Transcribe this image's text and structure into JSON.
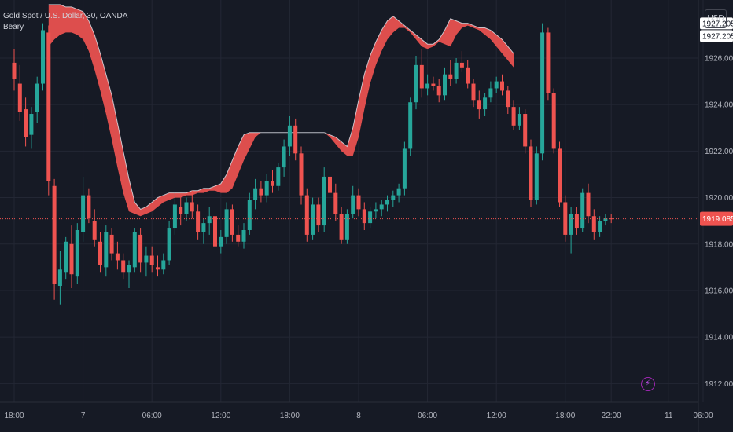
{
  "header": {
    "symbol_title": "Gold Spot / U.S. Dollar, 30, OANDA",
    "indicator": "Beary",
    "currency": "USD"
  },
  "icons": {
    "flash": "lightning-icon"
  },
  "colors": {
    "background": "#161a25",
    "up": "#26a69a",
    "down": "#ef5350",
    "band": "#ef5350",
    "band_line": "#e0e3eb",
    "price_line": "#ef5350"
  },
  "chart_data": {
    "type": "candlestick",
    "y_ticks": [
      "1912.000",
      "1914.000",
      "1916.000",
      "1918.000",
      "1920.000",
      "1922.000",
      "1924.000",
      "1926.000"
    ],
    "ylim": [
      1911.2,
      1928.5
    ],
    "x_ticks": [
      {
        "label": "18:00",
        "i": 0
      },
      {
        "label": "7",
        "i": 12
      },
      {
        "label": "06:00",
        "i": 24
      },
      {
        "label": "12:00",
        "i": 36
      },
      {
        "label": "18:00",
        "i": 48
      },
      {
        "label": "8",
        "i": 60
      },
      {
        "label": "06:00",
        "i": 72
      },
      {
        "label": "12:00",
        "i": 84
      },
      {
        "label": "18:00",
        "i": 96
      },
      {
        "label": "22:00",
        "i": 104
      },
      {
        "label": "11",
        "i": 114
      },
      {
        "label": "06:00",
        "i": 120
      }
    ],
    "last_price": "1919.085",
    "last_price_value": 1919.085,
    "band_labels": [
      "1927.205",
      "1927.205"
    ],
    "candles": [
      [
        1925.8,
        1926.4,
        1924.6,
        1925.1
      ],
      [
        1924.9,
        1925.7,
        1923.3,
        1923.7
      ],
      [
        1923.8,
        1924.3,
        1922.2,
        1922.6
      ],
      [
        1922.7,
        1923.9,
        1922.1,
        1923.6
      ],
      [
        1923.7,
        1925.2,
        1923.2,
        1924.9
      ],
      [
        1924.9,
        1927.5,
        1924.6,
        1927.2
      ],
      [
        1927.1,
        1927.4,
        1920.1,
        1920.7
      ],
      [
        1920.5,
        1920.8,
        1915.6,
        1916.3
      ],
      [
        1916.2,
        1917.7,
        1915.4,
        1916.9
      ],
      [
        1916.8,
        1918.3,
        1916.5,
        1918.1
      ],
      [
        1918.0,
        1918.8,
        1916.1,
        1916.7
      ],
      [
        1916.6,
        1918.9,
        1916.3,
        1918.6
      ],
      [
        1918.5,
        1920.9,
        1918.1,
        1920.1
      ],
      [
        1920.1,
        1920.4,
        1918.9,
        1919.1
      ],
      [
        1919.0,
        1919.5,
        1917.9,
        1918.2
      ],
      [
        1918.1,
        1918.5,
        1916.8,
        1917.1
      ],
      [
        1917.0,
        1918.8,
        1916.6,
        1918.5
      ],
      [
        1918.4,
        1918.7,
        1917.3,
        1917.6
      ],
      [
        1917.6,
        1918.1,
        1916.9,
        1917.3
      ],
      [
        1917.3,
        1917.6,
        1916.5,
        1916.8
      ],
      [
        1916.8,
        1917.3,
        1916.1,
        1917.1
      ],
      [
        1917.0,
        1918.7,
        1916.8,
        1918.5
      ],
      [
        1918.4,
        1918.7,
        1916.8,
        1917.2
      ],
      [
        1917.2,
        1917.9,
        1916.6,
        1917.5
      ],
      [
        1917.5,
        1917.9,
        1916.8,
        1917.1
      ],
      [
        1917.0,
        1917.5,
        1916.6,
        1916.9
      ],
      [
        1916.9,
        1917.6,
        1916.7,
        1917.3
      ],
      [
        1917.3,
        1919.0,
        1917.1,
        1918.7
      ],
      [
        1918.7,
        1920.2,
        1918.4,
        1919.7
      ],
      [
        1919.6,
        1920.0,
        1918.8,
        1919.3
      ],
      [
        1919.3,
        1920.0,
        1919.0,
        1919.8
      ],
      [
        1919.8,
        1920.3,
        1919.1,
        1919.4
      ],
      [
        1919.4,
        1919.7,
        1918.2,
        1918.5
      ],
      [
        1918.5,
        1919.1,
        1918.0,
        1918.9
      ],
      [
        1918.9,
        1919.6,
        1918.4,
        1919.2
      ],
      [
        1919.2,
        1919.5,
        1917.6,
        1917.9
      ],
      [
        1917.9,
        1918.6,
        1917.6,
        1918.3
      ],
      [
        1918.3,
        1919.8,
        1918.0,
        1919.5
      ],
      [
        1919.5,
        1919.7,
        1918.1,
        1918.4
      ],
      [
        1918.4,
        1918.8,
        1917.9,
        1918.1
      ],
      [
        1918.1,
        1918.9,
        1917.8,
        1918.6
      ],
      [
        1918.6,
        1920.2,
        1918.4,
        1919.9
      ],
      [
        1919.9,
        1920.8,
        1919.5,
        1920.4
      ],
      [
        1920.4,
        1920.7,
        1919.8,
        1920.1
      ],
      [
        1920.1,
        1921.0,
        1919.8,
        1920.7
      ],
      [
        1920.7,
        1921.2,
        1920.2,
        1920.5
      ],
      [
        1920.5,
        1921.5,
        1920.3,
        1921.3
      ],
      [
        1921.3,
        1922.5,
        1920.9,
        1922.2
      ],
      [
        1922.2,
        1923.5,
        1921.8,
        1923.1
      ],
      [
        1923.1,
        1923.4,
        1921.6,
        1921.9
      ],
      [
        1921.9,
        1922.2,
        1919.7,
        1920.1
      ],
      [
        1920.1,
        1920.4,
        1918.1,
        1918.4
      ],
      [
        1918.4,
        1920.0,
        1918.2,
        1919.7
      ],
      [
        1919.7,
        1920.0,
        1918.5,
        1918.8
      ],
      [
        1918.8,
        1921.3,
        1918.5,
        1920.9
      ],
      [
        1920.9,
        1921.5,
        1919.9,
        1920.2
      ],
      [
        1920.2,
        1920.6,
        1919.0,
        1919.3
      ],
      [
        1919.3,
        1919.6,
        1918.0,
        1918.2
      ],
      [
        1918.2,
        1919.5,
        1918.0,
        1919.3
      ],
      [
        1919.3,
        1920.5,
        1919.1,
        1920.1
      ],
      [
        1920.1,
        1920.4,
        1919.2,
        1919.5
      ],
      [
        1919.5,
        1919.8,
        1918.6,
        1918.9
      ],
      [
        1918.9,
        1919.6,
        1918.7,
        1919.4
      ],
      [
        1919.4,
        1919.8,
        1919.1,
        1919.5
      ],
      [
        1919.5,
        1919.9,
        1919.2,
        1919.7
      ],
      [
        1919.7,
        1920.1,
        1919.4,
        1919.9
      ],
      [
        1919.9,
        1920.3,
        1919.6,
        1920.1
      ],
      [
        1920.1,
        1920.6,
        1919.8,
        1920.4
      ],
      [
        1920.4,
        1922.4,
        1920.1,
        1922.1
      ],
      [
        1922.1,
        1924.3,
        1921.8,
        1924.1
      ],
      [
        1924.1,
        1926.1,
        1923.8,
        1925.7
      ],
      [
        1925.7,
        1926.4,
        1924.3,
        1924.7
      ],
      [
        1924.7,
        1925.3,
        1924.4,
        1924.9
      ],
      [
        1924.9,
        1925.2,
        1924.6,
        1924.8
      ],
      [
        1924.8,
        1925.1,
        1924.1,
        1924.4
      ],
      [
        1924.4,
        1925.6,
        1924.2,
        1925.3
      ],
      [
        1925.3,
        1925.9,
        1924.8,
        1925.1
      ],
      [
        1925.1,
        1926.0,
        1924.9,
        1925.8
      ],
      [
        1925.8,
        1926.3,
        1925.4,
        1925.6
      ],
      [
        1925.6,
        1925.9,
        1924.7,
        1924.9
      ],
      [
        1924.9,
        1925.1,
        1923.9,
        1924.2
      ],
      [
        1924.2,
        1924.6,
        1923.4,
        1923.8
      ],
      [
        1923.8,
        1924.5,
        1923.5,
        1924.3
      ],
      [
        1924.3,
        1925.0,
        1924.1,
        1924.7
      ],
      [
        1924.7,
        1925.2,
        1924.5,
        1925.0
      ],
      [
        1925.0,
        1925.3,
        1924.4,
        1924.6
      ],
      [
        1924.6,
        1924.8,
        1923.6,
        1923.9
      ],
      [
        1923.9,
        1924.2,
        1922.9,
        1923.1
      ],
      [
        1923.1,
        1923.9,
        1922.9,
        1923.6
      ],
      [
        1923.6,
        1923.8,
        1921.9,
        1922.2
      ],
      [
        1922.2,
        1922.5,
        1919.6,
        1919.9
      ],
      [
        1919.9,
        1922.2,
        1919.7,
        1921.9
      ],
      [
        1921.9,
        1927.5,
        1921.6,
        1927.1
      ],
      [
        1927.1,
        1927.3,
        1924.2,
        1924.5
      ],
      [
        1924.5,
        1924.7,
        1921.9,
        1922.1
      ],
      [
        1922.1,
        1922.4,
        1919.6,
        1919.8
      ],
      [
        1919.8,
        1920.1,
        1918.1,
        1918.4
      ],
      [
        1918.4,
        1919.6,
        1917.6,
        1919.3
      ],
      [
        1919.3,
        1919.6,
        1918.4,
        1918.7
      ],
      [
        1918.7,
        1920.4,
        1918.5,
        1920.2
      ],
      [
        1920.2,
        1920.6,
        1918.9,
        1919.2
      ],
      [
        1919.2,
        1919.5,
        1918.2,
        1918.5
      ],
      [
        1918.5,
        1919.2,
        1918.3,
        1919.0
      ],
      [
        1919.0,
        1919.3,
        1918.8,
        1919.1
      ],
      [
        1919.1,
        1919.3,
        1918.9,
        1919.085
      ]
    ],
    "band_top": [
      1928.3,
      1928.3,
      1928.3,
      1928.2,
      1928.2,
      1928.1,
      1928.0,
      1927.6,
      1927.0,
      1926.2,
      1925.3,
      1924.4,
      1923.2,
      1922.0,
      1920.8,
      1919.8,
      1919.5,
      1919.6,
      1919.8,
      1920.0,
      1920.1,
      1920.2,
      1920.2,
      1920.2,
      1920.2,
      1920.3,
      1920.3,
      1920.4,
      1920.4,
      1920.5,
      1920.6,
      1921.0,
      1921.6,
      1922.2,
      1922.7,
      1922.8,
      1922.8,
      1922.8,
      1922.8,
      1922.8,
      1922.8,
      1922.8,
      1922.8,
      1922.8,
      1922.8,
      1922.8,
      1922.8,
      1922.8,
      1922.8,
      1922.7,
      1922.6,
      1922.4,
      1922.2,
      1923.0,
      1924.2,
      1925.3,
      1926.1,
      1926.7,
      1927.2,
      1927.6,
      1927.8,
      1927.6,
      1927.4,
      1927.2,
      1927.0,
      1926.8,
      1926.6,
      1926.6,
      1926.8,
      1927.2,
      1927.7,
      1927.6,
      1927.5,
      1927.5,
      1927.4,
      1927.3,
      1927.3,
      1927.2,
      1927.0,
      1926.8,
      1926.5,
      1926.2
    ],
    "band_bottom": [
      1926.5,
      1926.8,
      1927.0,
      1927.1,
      1927.1,
      1927.0,
      1926.8,
      1926.3,
      1925.5,
      1924.6,
      1923.6,
      1922.5,
      1921.3,
      1920.2,
      1919.4,
      1919.3,
      1919.2,
      1919.3,
      1919.4,
      1919.6,
      1919.8,
      1919.9,
      1920.0,
      1920.0,
      1920.1,
      1920.1,
      1920.2,
      1920.2,
      1920.3,
      1920.3,
      1920.2,
      1920.2,
      1920.4,
      1921.0,
      1921.6,
      1922.1,
      1922.6,
      1922.8,
      1922.8,
      1922.8,
      1922.8,
      1922.8,
      1922.8,
      1922.8,
      1922.8,
      1922.8,
      1922.8,
      1922.8,
      1922.8,
      1922.6,
      1922.3,
      1922.0,
      1921.8,
      1921.8,
      1922.6,
      1923.8,
      1924.9,
      1925.7,
      1926.3,
      1926.8,
      1927.1,
      1927.3,
      1927.3,
      1927.1,
      1926.8,
      1926.5,
      1926.4,
      1926.5,
      1926.7,
      1926.6,
      1926.5,
      1927.0,
      1927.3,
      1927.4,
      1927.3,
      1927.2,
      1927.0,
      1926.8,
      1926.5,
      1926.2,
      1925.9,
      1925.6
    ]
  }
}
